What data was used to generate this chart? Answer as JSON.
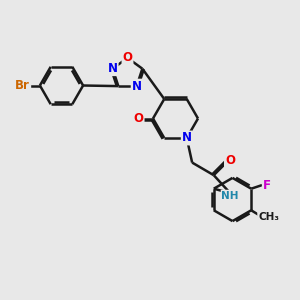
{
  "bg_color": "#e8e8e8",
  "line_color": "#1a1a1a",
  "bond_width": 1.8,
  "atom_colors": {
    "N": "#0000ee",
    "O": "#ee0000",
    "Br": "#cc6600",
    "F": "#cc00cc",
    "C": "#1a1a1a",
    "H": "#2288aa"
  },
  "font_size": 8.5,
  "figsize": [
    3.0,
    3.0
  ],
  "dpi": 100,
  "xlim": [
    0,
    10
  ],
  "ylim": [
    0,
    10
  ]
}
